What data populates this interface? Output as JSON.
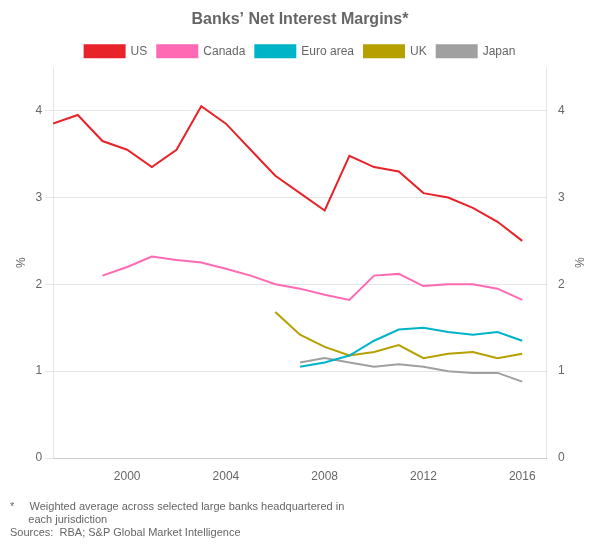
{
  "chart_data": {
    "type": "line",
    "title": "Banks’ Net Interest Margins*",
    "ylabel": "%",
    "y2label": "%",
    "x": [
      1997,
      1998,
      1999,
      2000,
      2001,
      2002,
      2003,
      2004,
      2005,
      2006,
      2007,
      2008,
      2009,
      2010,
      2011,
      2012,
      2013,
      2014,
      2015,
      2016
    ],
    "xlim": [
      1997,
      2017
    ],
    "xticks": [
      2000,
      2004,
      2008,
      2012,
      2016
    ],
    "ylim": [
      0,
      4.5
    ],
    "yticks": [
      0,
      1,
      2,
      3,
      4
    ],
    "y2lim": [
      0,
      4.5
    ],
    "y2ticks": [
      0,
      1,
      2,
      3,
      4
    ],
    "grid": "y",
    "legend": "top",
    "annotations": [
      "*     Weighted average across selected large banks headquartered in\n      each jurisdiction",
      "Sources:  RBA; S&P Global Market Intelligence"
    ],
    "series": [
      {
        "name": "US",
        "color": "#e8232a",
        "values": [
          3.85,
          3.95,
          3.65,
          3.55,
          3.35,
          3.55,
          4.05,
          3.85,
          3.55,
          3.25,
          3.05,
          2.85,
          3.48,
          3.35,
          3.3,
          3.05,
          3.0,
          2.88,
          2.72,
          2.5
        ]
      },
      {
        "name": "Canada",
        "color": "#ff69b4",
        "values": [
          null,
          null,
          2.1,
          2.2,
          2.32,
          2.28,
          2.25,
          2.18,
          2.1,
          2.0,
          1.95,
          1.88,
          1.82,
          2.1,
          2.12,
          1.98,
          2.0,
          2.0,
          1.95,
          1.82
        ]
      },
      {
        "name": "Euro area",
        "color": "#00b4c8",
        "values": [
          null,
          null,
          null,
          null,
          null,
          null,
          null,
          null,
          null,
          null,
          1.05,
          1.1,
          1.18,
          1.35,
          1.48,
          1.5,
          1.45,
          1.42,
          1.45,
          1.35
        ]
      },
      {
        "name": "UK",
        "color": "#b5a000",
        "values": [
          null,
          null,
          null,
          null,
          null,
          null,
          null,
          null,
          null,
          1.68,
          1.42,
          1.28,
          1.18,
          1.22,
          1.3,
          1.15,
          1.2,
          1.22,
          1.15,
          1.2
        ]
      },
      {
        "name": "Japan",
        "color": "#a0a0a0",
        "values": [
          null,
          null,
          null,
          null,
          null,
          null,
          null,
          null,
          null,
          null,
          1.1,
          1.15,
          1.1,
          1.05,
          1.08,
          1.05,
          1.0,
          0.98,
          0.98,
          0.88
        ]
      }
    ]
  }
}
